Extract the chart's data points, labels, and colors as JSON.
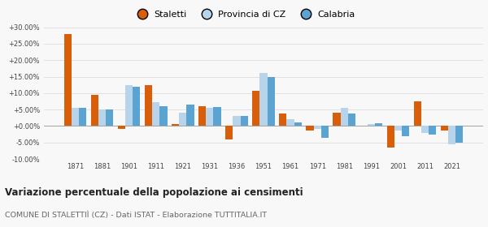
{
  "years": [
    1871,
    1881,
    1901,
    1911,
    1921,
    1931,
    1936,
    1951,
    1961,
    1971,
    1981,
    1991,
    2001,
    2011,
    2021
  ],
  "staletti": [
    28.0,
    9.5,
    -1.0,
    12.5,
    0.5,
    6.0,
    -4.0,
    10.8,
    3.8,
    -1.5,
    4.0,
    0.2,
    -6.5,
    7.5,
    -1.5
  ],
  "provincia_cz": [
    5.5,
    5.0,
    12.5,
    7.2,
    4.0,
    5.5,
    3.0,
    16.2,
    2.0,
    -1.0,
    5.5,
    0.5,
    -1.5,
    -2.0,
    -5.5
  ],
  "calabria": [
    5.5,
    5.0,
    12.0,
    6.0,
    6.5,
    5.8,
    3.0,
    15.0,
    1.2,
    -3.5,
    3.8,
    0.8,
    -3.0,
    -2.5,
    -5.0
  ],
  "color_staletti": "#d95e0a",
  "color_provincia": "#b8d4ea",
  "color_calabria": "#5ba3d0",
  "title": "Variazione percentuale della popolazione ai censimenti",
  "subtitle": "COMUNE DI STALETTIÌ (CZ) - Dati ISTAT - Elaborazione TUTTITALIA.IT",
  "legend_labels": [
    "Staletti",
    "Provincia di CZ",
    "Calabria"
  ],
  "ylim": [
    -10.0,
    30.0
  ],
  "yticks": [
    -10.0,
    -5.0,
    0.0,
    5.0,
    10.0,
    15.0,
    20.0,
    25.0,
    30.0
  ],
  "bg_color": "#f8f8f8",
  "grid_color": "#dddddd",
  "bar_width": 0.28
}
